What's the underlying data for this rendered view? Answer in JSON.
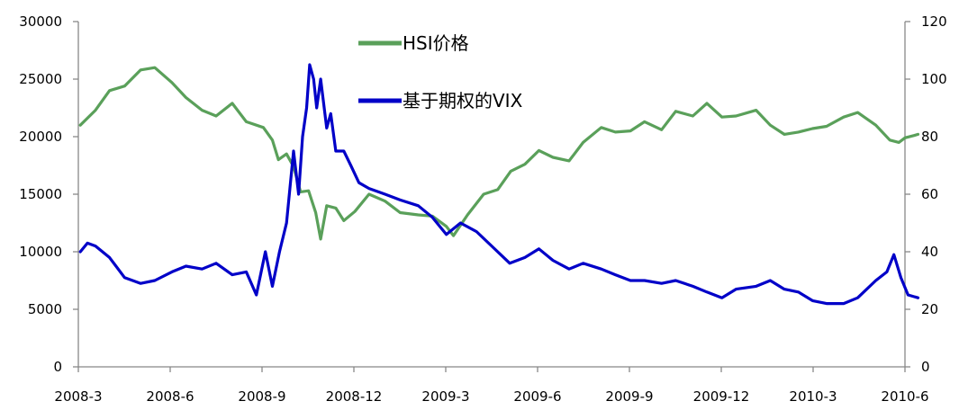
{
  "chart_data": {
    "type": "line",
    "title": "",
    "xlabel": "",
    "ylabel": "",
    "y2label": "",
    "x_ticks": [
      "2008-3",
      "2008-6",
      "2008-9",
      "2008-12",
      "2009-3",
      "2009-6",
      "2009-9",
      "2009-12",
      "2010-3",
      "2010-6"
    ],
    "x_range": [
      "2008-03",
      "2010-06"
    ],
    "ylim_left": [
      0,
      30000
    ],
    "yticks_left": [
      0,
      5000,
      10000,
      15000,
      20000,
      25000,
      30000
    ],
    "ylim_right": [
      0,
      120
    ],
    "yticks_right": [
      0,
      20,
      40,
      60,
      80,
      100,
      120
    ],
    "grid": false,
    "legend_position": "top-center",
    "series": [
      {
        "name": "HSI价格",
        "axis": "left",
        "color": "#5aa05a",
        "points": [
          [
            "2008-03-03",
            21000
          ],
          [
            "2008-03-18",
            22300
          ],
          [
            "2008-04-01",
            24000
          ],
          [
            "2008-04-16",
            24400
          ],
          [
            "2008-05-02",
            25800
          ],
          [
            "2008-05-16",
            26000
          ],
          [
            "2008-06-02",
            24700
          ],
          [
            "2008-06-16",
            23400
          ],
          [
            "2008-07-02",
            22300
          ],
          [
            "2008-07-16",
            21800
          ],
          [
            "2008-08-01",
            22900
          ],
          [
            "2008-08-15",
            21300
          ],
          [
            "2008-09-01",
            20800
          ],
          [
            "2008-09-10",
            19700
          ],
          [
            "2008-09-16",
            18000
          ],
          [
            "2008-09-24",
            18500
          ],
          [
            "2008-10-01",
            17400
          ],
          [
            "2008-10-08",
            15200
          ],
          [
            "2008-10-16",
            15300
          ],
          [
            "2008-10-23",
            13400
          ],
          [
            "2008-10-28",
            11100
          ],
          [
            "2008-11-03",
            14000
          ],
          [
            "2008-11-12",
            13800
          ],
          [
            "2008-11-20",
            12700
          ],
          [
            "2008-12-01",
            13500
          ],
          [
            "2008-12-15",
            15000
          ],
          [
            "2008-12-31",
            14400
          ],
          [
            "2009-01-15",
            13400
          ],
          [
            "2009-02-02",
            13200
          ],
          [
            "2009-02-16",
            13100
          ],
          [
            "2009-03-02",
            12200
          ],
          [
            "2009-03-09",
            11400
          ],
          [
            "2009-03-23",
            13200
          ],
          [
            "2009-04-08",
            15000
          ],
          [
            "2009-04-22",
            15400
          ],
          [
            "2009-05-05",
            17000
          ],
          [
            "2009-05-19",
            17600
          ],
          [
            "2009-06-02",
            18800
          ],
          [
            "2009-06-16",
            18200
          ],
          [
            "2009-07-02",
            17900
          ],
          [
            "2009-07-16",
            19500
          ],
          [
            "2009-08-03",
            20800
          ],
          [
            "2009-08-17",
            20400
          ],
          [
            "2009-09-01",
            20500
          ],
          [
            "2009-09-15",
            21300
          ],
          [
            "2009-10-02",
            20600
          ],
          [
            "2009-10-16",
            22200
          ],
          [
            "2009-11-02",
            21800
          ],
          [
            "2009-11-16",
            22900
          ],
          [
            "2009-12-01",
            21700
          ],
          [
            "2009-12-15",
            21800
          ],
          [
            "2010-01-04",
            22300
          ],
          [
            "2010-01-18",
            21000
          ],
          [
            "2010-02-01",
            20200
          ],
          [
            "2010-02-15",
            20400
          ],
          [
            "2010-03-01",
            20700
          ],
          [
            "2010-03-15",
            20900
          ],
          [
            "2010-04-01",
            21700
          ],
          [
            "2010-04-15",
            22100
          ],
          [
            "2010-05-03",
            21000
          ],
          [
            "2010-05-17",
            19700
          ],
          [
            "2010-05-26",
            19500
          ],
          [
            "2010-06-01",
            19900
          ],
          [
            "2010-06-10",
            20100
          ],
          [
            "2010-06-14",
            20200
          ]
        ]
      },
      {
        "name": "基于期权的VIX",
        "axis": "right",
        "color": "#0000c8",
        "points": [
          [
            "2008-03-03",
            40
          ],
          [
            "2008-03-10",
            43
          ],
          [
            "2008-03-18",
            42
          ],
          [
            "2008-04-01",
            38
          ],
          [
            "2008-04-16",
            31
          ],
          [
            "2008-05-02",
            29
          ],
          [
            "2008-05-16",
            30
          ],
          [
            "2008-06-02",
            33
          ],
          [
            "2008-06-16",
            35
          ],
          [
            "2008-07-02",
            34
          ],
          [
            "2008-07-16",
            36
          ],
          [
            "2008-08-01",
            32
          ],
          [
            "2008-08-15",
            33
          ],
          [
            "2008-08-25",
            25
          ],
          [
            "2008-09-03",
            40
          ],
          [
            "2008-09-10",
            28
          ],
          [
            "2008-09-17",
            40
          ],
          [
            "2008-09-24",
            50
          ],
          [
            "2008-10-01",
            75
          ],
          [
            "2008-10-06",
            60
          ],
          [
            "2008-10-10",
            80
          ],
          [
            "2008-10-14",
            90
          ],
          [
            "2008-10-17",
            105
          ],
          [
            "2008-10-21",
            100
          ],
          [
            "2008-10-24",
            90
          ],
          [
            "2008-10-28",
            100
          ],
          [
            "2008-11-03",
            83
          ],
          [
            "2008-11-07",
            88
          ],
          [
            "2008-11-12",
            75
          ],
          [
            "2008-11-20",
            75
          ],
          [
            "2008-11-27",
            70
          ],
          [
            "2008-12-05",
            64
          ],
          [
            "2008-12-15",
            62
          ],
          [
            "2008-12-31",
            60
          ],
          [
            "2009-01-15",
            58
          ],
          [
            "2009-02-02",
            56
          ],
          [
            "2009-02-16",
            52
          ],
          [
            "2009-03-02",
            46
          ],
          [
            "2009-03-16",
            50
          ],
          [
            "2009-04-01",
            47
          ],
          [
            "2009-04-16",
            42
          ],
          [
            "2009-05-04",
            36
          ],
          [
            "2009-05-19",
            38
          ],
          [
            "2009-06-02",
            41
          ],
          [
            "2009-06-16",
            37
          ],
          [
            "2009-07-02",
            34
          ],
          [
            "2009-07-16",
            36
          ],
          [
            "2009-08-03",
            34
          ],
          [
            "2009-08-17",
            32
          ],
          [
            "2009-09-01",
            30
          ],
          [
            "2009-09-15",
            30
          ],
          [
            "2009-10-02",
            29
          ],
          [
            "2009-10-16",
            30
          ],
          [
            "2009-11-02",
            28
          ],
          [
            "2009-11-16",
            26
          ],
          [
            "2009-12-01",
            24
          ],
          [
            "2009-12-15",
            27
          ],
          [
            "2010-01-04",
            28
          ],
          [
            "2010-01-18",
            30
          ],
          [
            "2010-02-01",
            27
          ],
          [
            "2010-02-15",
            26
          ],
          [
            "2010-03-01",
            23
          ],
          [
            "2010-03-15",
            22
          ],
          [
            "2010-04-01",
            22
          ],
          [
            "2010-04-15",
            24
          ],
          [
            "2010-05-03",
            30
          ],
          [
            "2010-05-14",
            33
          ],
          [
            "2010-05-21",
            39
          ],
          [
            "2010-05-28",
            31
          ],
          [
            "2010-06-04",
            25
          ],
          [
            "2010-06-14",
            24
          ]
        ]
      }
    ]
  },
  "colors": {
    "hsi": "#5aa05a",
    "vix": "#0000c8",
    "axis": "#888888"
  }
}
